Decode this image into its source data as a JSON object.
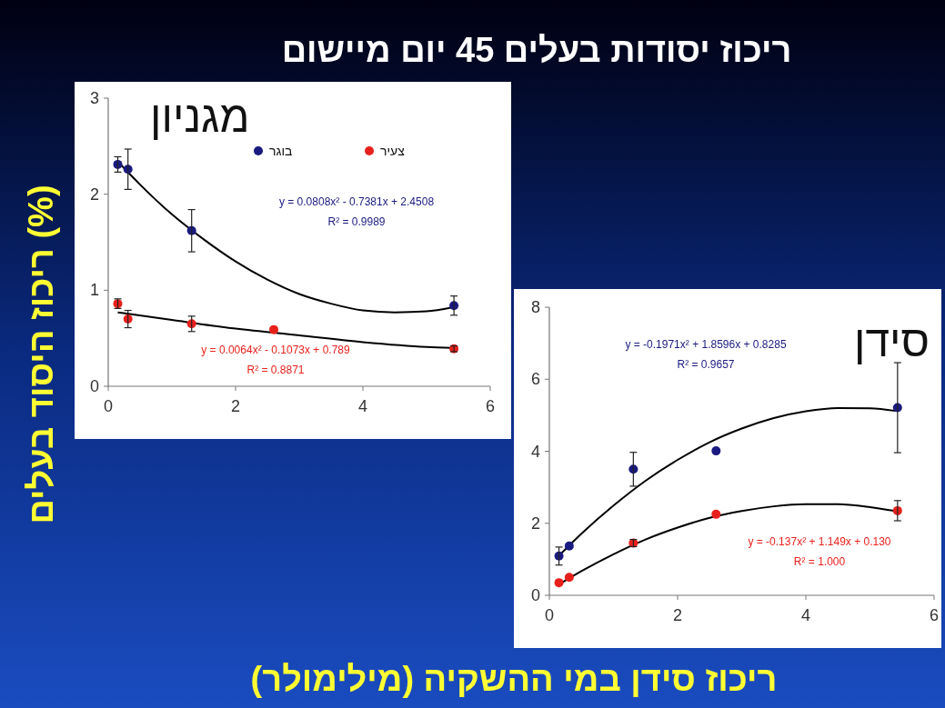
{
  "chart_data": [
    {
      "type": "scatter",
      "title": "מגניון",
      "ylabel": "ריכוז היסוד בעלים (%)",
      "xlim": [
        0,
        6
      ],
      "xticks": [
        0,
        2,
        4,
        6
      ],
      "ylim": [
        0,
        3
      ],
      "yticks": [
        0,
        1,
        2,
        3
      ],
      "grid": false,
      "legend": "top right",
      "annotations": [
        "ריכוז יסודות בעלים 45 יום מיישום",
        "y = 0.0808x² - 0.7381x + 2.4508",
        "R² = 0.9989",
        "y = 0.0064x² - 0.1073x + 0.789",
        "R² = 0.8871"
      ],
      "series": [
        {
          "name": "בוגר",
          "marker": "circle",
          "color": "#1a1a80",
          "x": [
            0.15,
            0.31,
            1.31,
            5.43
          ],
          "values": [
            2.31,
            2.26,
            1.62,
            0.84
          ],
          "errors": [
            0.08,
            0.21,
            0.22,
            0.1
          ]
        },
        {
          "name": "צעיר",
          "marker": "circle",
          "color": "#e8201c",
          "x": [
            0.15,
            0.31,
            1.31,
            2.6,
            5.43
          ],
          "values": [
            0.86,
            0.7,
            0.65,
            0.59,
            0.39
          ],
          "errors": [
            0.05,
            0.09,
            0.08,
            null,
            0.03
          ]
        },
        {
          "type": "line",
          "color": "#000000",
          "x": [
            0.15,
            0.5,
            1,
            1.5,
            2,
            2.5,
            3,
            3.5,
            4,
            4.5,
            5,
            5.4
          ],
          "values": [
            2.34,
            2.1,
            1.79,
            1.53,
            1.3,
            1.11,
            0.96,
            0.86,
            0.79,
            0.77,
            0.78,
            0.82
          ]
        },
        {
          "type": "line",
          "color": "#000000",
          "x": [
            0.15,
            1,
            2,
            3,
            4,
            5,
            5.4
          ],
          "values": [
            0.77,
            0.69,
            0.6,
            0.53,
            0.46,
            0.41,
            0.4
          ]
        }
      ]
    },
    {
      "type": "scatter",
      "title": "סידן",
      "xlabel": "ריכוז סידן במי ההשקיה  (מילימולר)",
      "xlim": [
        0,
        6
      ],
      "xticks": [
        0,
        2,
        4,
        6
      ],
      "ylim": [
        0,
        8
      ],
      "yticks": [
        0,
        2,
        4,
        6,
        8
      ],
      "grid": false,
      "annotations": [
        "y = -0.1971x² + 1.8596x + 0.8285",
        "R² = 0.9657",
        "y = -0.137x² + 1.149x + 0.130",
        "R² = 1.000"
      ],
      "series": [
        {
          "marker": "circle",
          "color": "#1a1a80",
          "x": [
            0.15,
            0.31,
            1.31,
            2.6,
            5.43
          ],
          "values": [
            1.09,
            1.37,
            3.5,
            4.01,
            5.21
          ],
          "errors": [
            0.25,
            null,
            0.47,
            null,
            1.25
          ]
        },
        {
          "marker": "circle",
          "color": "#e8201c",
          "x": [
            0.15,
            0.31,
            1.31,
            2.6,
            5.43
          ],
          "values": [
            0.35,
            0.5,
            1.45,
            2.25,
            2.35
          ],
          "errors": [
            null,
            null,
            0.1,
            null,
            0.28
          ]
        },
        {
          "type": "line",
          "color": "#000000",
          "x": [
            0.15,
            0.5,
            1,
            1.5,
            2,
            2.5,
            3,
            3.5,
            4,
            4.5,
            5,
            5.4
          ],
          "values": [
            1.1,
            1.71,
            2.49,
            3.18,
            3.76,
            4.25,
            4.63,
            4.92,
            5.11,
            5.2,
            5.19,
            5.12
          ]
        },
        {
          "type": "line",
          "color": "#000000",
          "x": [
            0.15,
            0.5,
            1,
            1.5,
            2,
            2.5,
            3,
            3.5,
            4,
            4.5,
            5,
            5.4
          ],
          "values": [
            0.3,
            0.67,
            1.14,
            1.55,
            1.88,
            2.15,
            2.34,
            2.47,
            2.53,
            2.53,
            2.45,
            2.34
          ]
        }
      ]
    }
  ]
}
